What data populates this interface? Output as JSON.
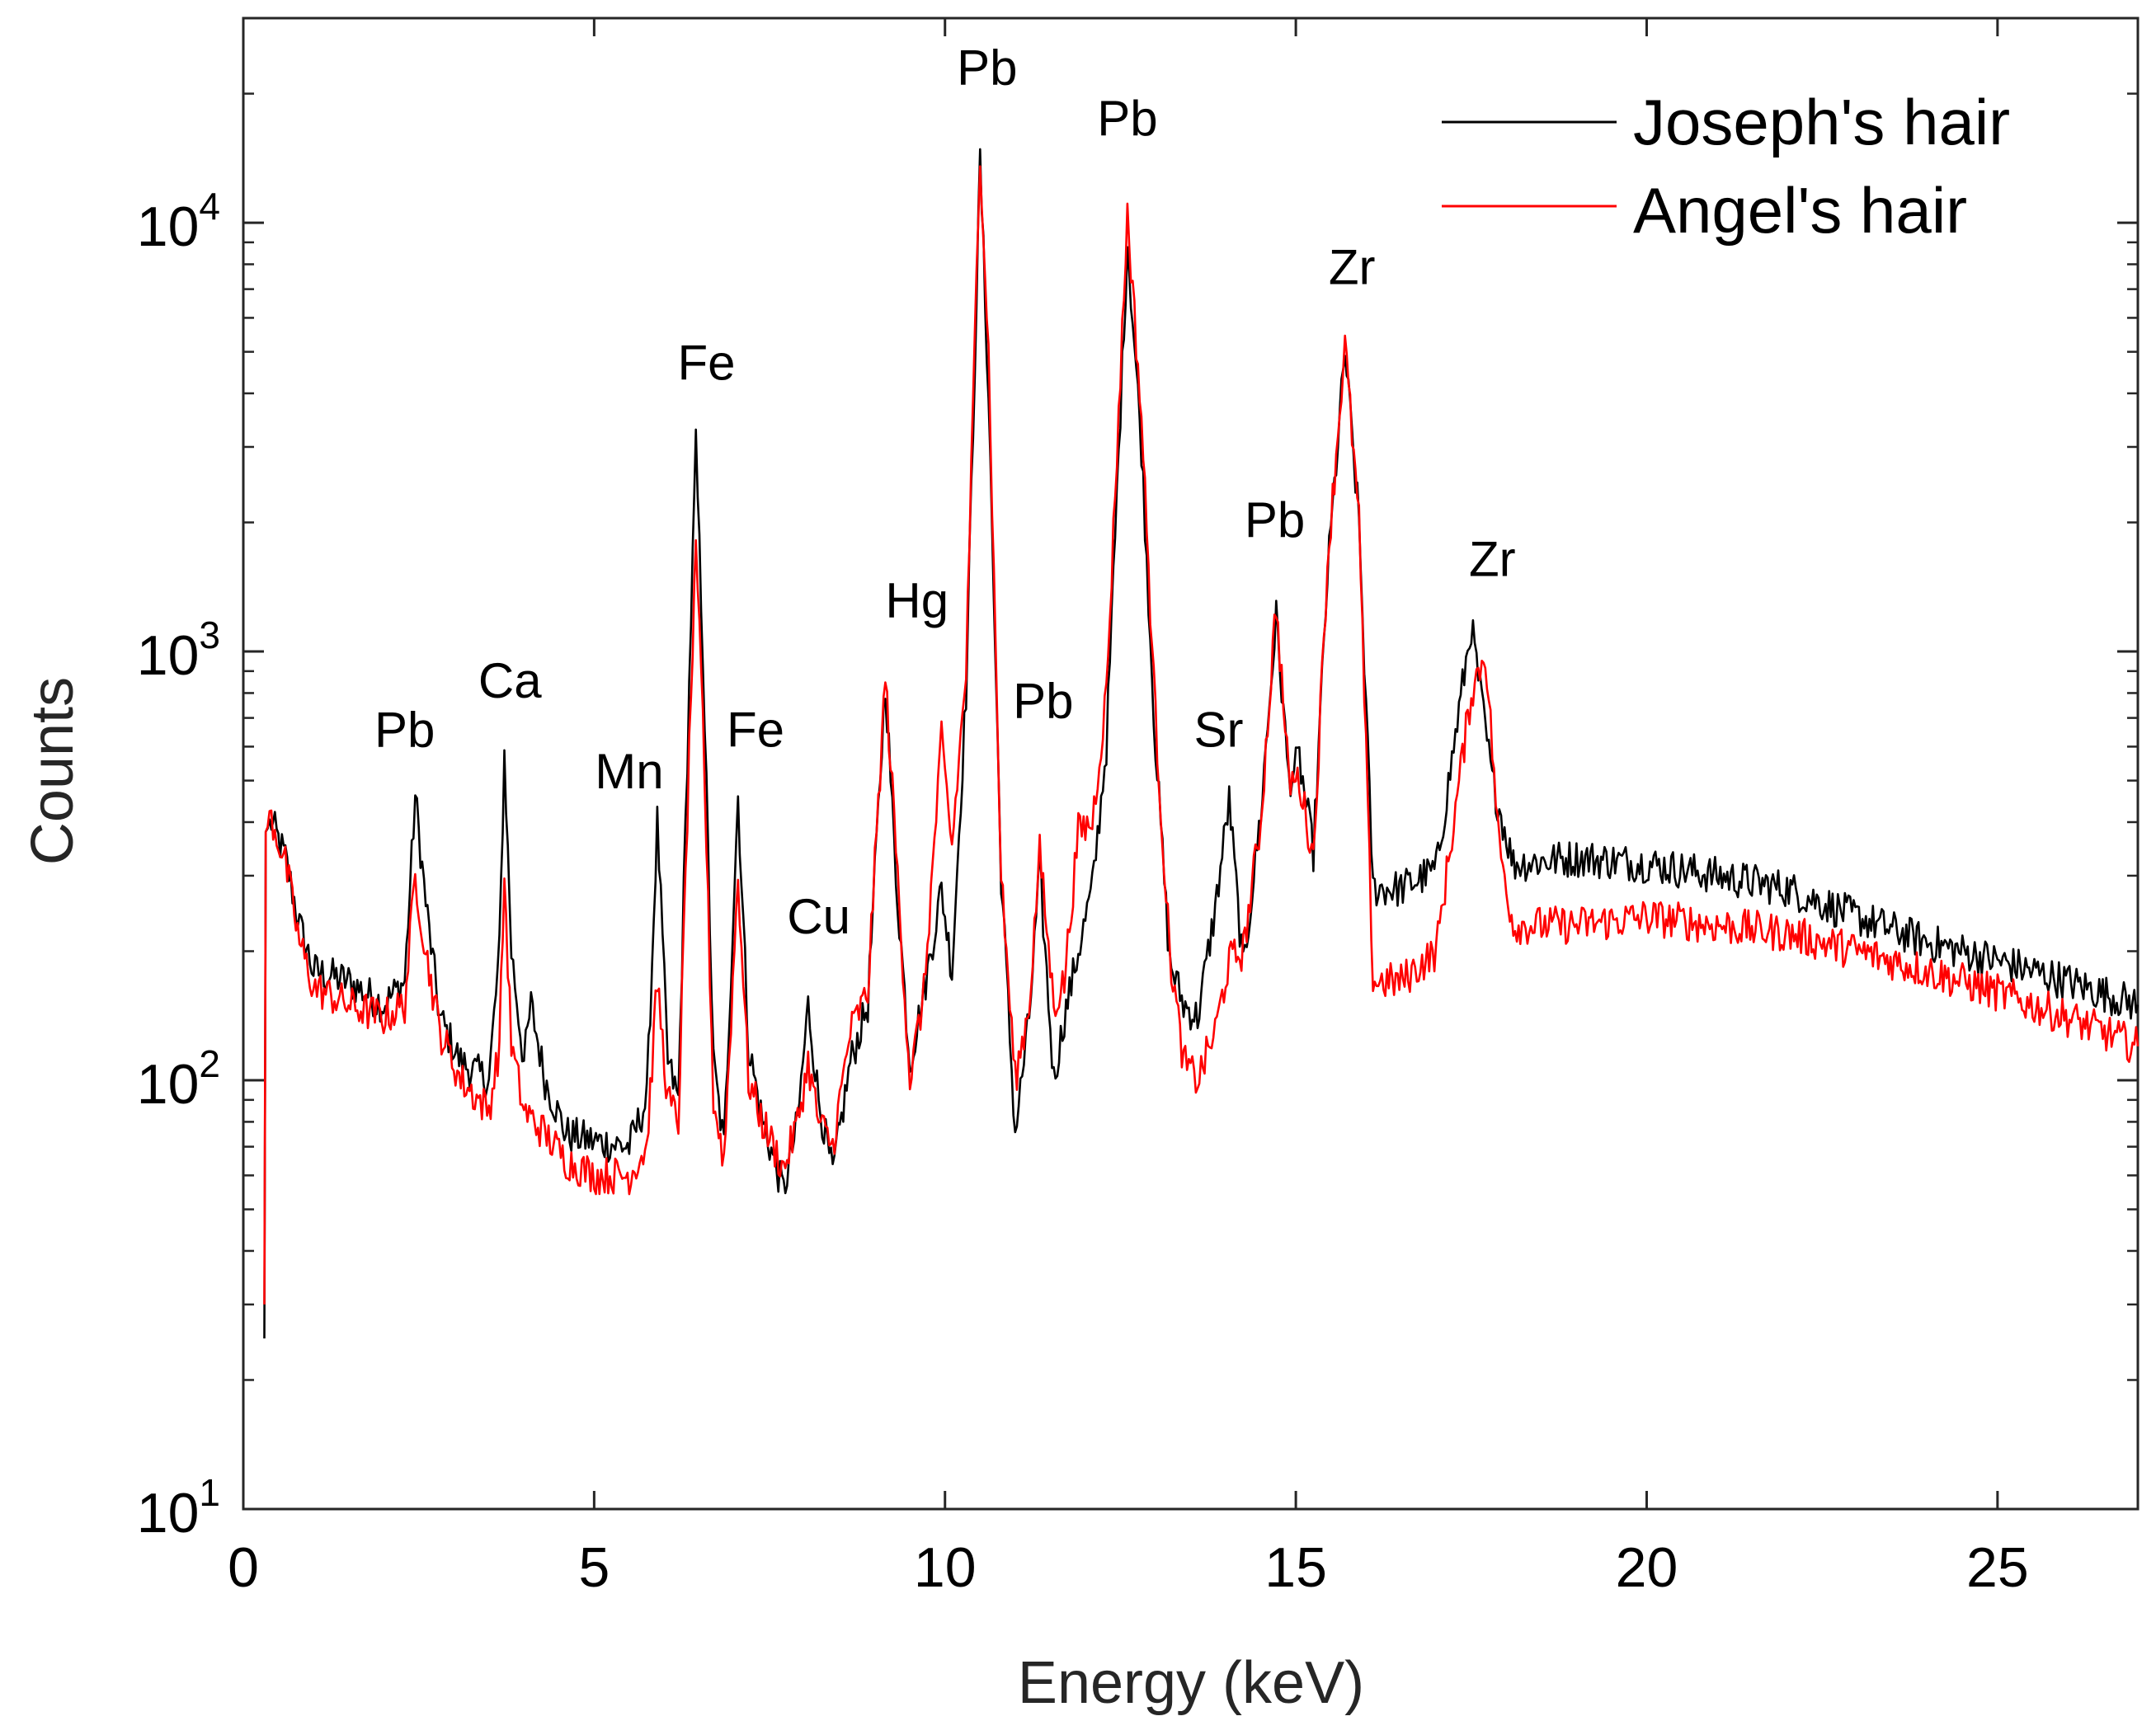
{
  "chart_data": {
    "type": "line",
    "title": "",
    "xlabel": "Energy (keV)",
    "ylabel": "Counts",
    "xlim": [
      0,
      27
    ],
    "ylim": [
      10,
      30000
    ],
    "yscale": "log",
    "x_ticks": [
      {
        "value": 0,
        "label": "0"
      },
      {
        "value": 5,
        "label": "5"
      },
      {
        "value": 10,
        "label": "10"
      },
      {
        "value": 15,
        "label": "15"
      },
      {
        "value": 20,
        "label": "20"
      },
      {
        "value": 25,
        "label": "25"
      }
    ],
    "y_ticks": [
      {
        "value": 10,
        "base": "10",
        "exp": "1"
      },
      {
        "value": 100,
        "base": "10",
        "exp": "2"
      },
      {
        "value": 1000,
        "base": "10",
        "exp": "3"
      },
      {
        "value": 10000,
        "base": "10",
        "exp": "4"
      }
    ],
    "legend_position": "top-right",
    "series": [
      {
        "name": "Joseph's hair",
        "color": "#000000",
        "points": [
          [
            0.3,
            25
          ],
          [
            0.32,
            380
          ],
          [
            0.4,
            400
          ],
          [
            0.6,
            330
          ],
          [
            0.8,
            230
          ],
          [
            1.0,
            180
          ],
          [
            1.5,
            170
          ],
          [
            2.0,
            150
          ],
          [
            2.3,
            170
          ],
          [
            2.45,
            460
          ],
          [
            2.6,
            260
          ],
          [
            2.8,
            140
          ],
          [
            3.1,
            110
          ],
          [
            3.5,
            100
          ],
          [
            3.65,
            200
          ],
          [
            3.72,
            580
          ],
          [
            3.82,
            200
          ],
          [
            4.0,
            110
          ],
          [
            4.1,
            150
          ],
          [
            4.3,
            100
          ],
          [
            4.6,
            75
          ],
          [
            5.0,
            72
          ],
          [
            5.5,
            70
          ],
          [
            5.75,
            90
          ],
          [
            5.9,
            400
          ],
          [
            6.05,
            110
          ],
          [
            6.2,
            90
          ],
          [
            6.38,
            1200
          ],
          [
            6.45,
            3000
          ],
          [
            6.55,
            1000
          ],
          [
            6.7,
            110
          ],
          [
            6.85,
            70
          ],
          [
            7.05,
            460
          ],
          [
            7.2,
            120
          ],
          [
            7.4,
            80
          ],
          [
            7.7,
            55
          ],
          [
            7.9,
            80
          ],
          [
            8.05,
            150
          ],
          [
            8.2,
            90
          ],
          [
            8.4,
            60
          ],
          [
            8.65,
            110
          ],
          [
            8.9,
            150
          ],
          [
            9.15,
            850
          ],
          [
            9.3,
            300
          ],
          [
            9.5,
            110
          ],
          [
            9.7,
            160
          ],
          [
            9.95,
            280
          ],
          [
            10.1,
            180
          ],
          [
            10.3,
            800
          ],
          [
            10.5,
            14000
          ],
          [
            10.62,
            4000
          ],
          [
            10.8,
            300
          ],
          [
            11.0,
            75
          ],
          [
            11.2,
            140
          ],
          [
            11.35,
            310
          ],
          [
            11.55,
            100
          ],
          [
            11.7,
            140
          ],
          [
            11.9,
            200
          ],
          [
            12.1,
            280
          ],
          [
            12.3,
            600
          ],
          [
            12.6,
            9000
          ],
          [
            12.8,
            3000
          ],
          [
            13.0,
            600
          ],
          [
            13.2,
            190
          ],
          [
            13.4,
            150
          ],
          [
            13.6,
            140
          ],
          [
            13.85,
            250
          ],
          [
            14.05,
            450
          ],
          [
            14.25,
            180
          ],
          [
            14.5,
            420
          ],
          [
            14.72,
            1200
          ],
          [
            14.9,
            500
          ],
          [
            15.05,
            560
          ],
          [
            15.25,
            340
          ],
          [
            15.45,
            1500
          ],
          [
            15.7,
            5000
          ],
          [
            15.9,
            2000
          ],
          [
            16.1,
            280
          ],
          [
            16.5,
            280
          ],
          [
            17.0,
            310
          ],
          [
            17.5,
            1150
          ],
          [
            17.8,
            500
          ],
          [
            18.1,
            320
          ],
          [
            19.0,
            330
          ],
          [
            20.0,
            320
          ],
          [
            21.0,
            300
          ],
          [
            22.0,
            280
          ],
          [
            23.0,
            240
          ],
          [
            24.0,
            210
          ],
          [
            25.0,
            190
          ],
          [
            26.0,
            170
          ],
          [
            27.0,
            150
          ]
        ]
      },
      {
        "name": "Angel's hair",
        "color": "#ff0000",
        "points": [
          [
            0.3,
            30
          ],
          [
            0.32,
            380
          ],
          [
            0.4,
            410
          ],
          [
            0.6,
            320
          ],
          [
            0.8,
            210
          ],
          [
            1.0,
            165
          ],
          [
            1.5,
            150
          ],
          [
            2.0,
            140
          ],
          [
            2.3,
            150
          ],
          [
            2.45,
            300
          ],
          [
            2.6,
            200
          ],
          [
            2.8,
            130
          ],
          [
            3.1,
            100
          ],
          [
            3.5,
            85
          ],
          [
            3.65,
            120
          ],
          [
            3.72,
            300
          ],
          [
            3.82,
            120
          ],
          [
            4.0,
            85
          ],
          [
            4.3,
            75
          ],
          [
            4.6,
            65
          ],
          [
            5.0,
            60
          ],
          [
            5.5,
            60
          ],
          [
            5.75,
            70
          ],
          [
            5.9,
            170
          ],
          [
            6.05,
            90
          ],
          [
            6.2,
            80
          ],
          [
            6.38,
            800
          ],
          [
            6.45,
            1650
          ],
          [
            6.55,
            700
          ],
          [
            6.7,
            90
          ],
          [
            6.85,
            65
          ],
          [
            7.05,
            300
          ],
          [
            7.2,
            100
          ],
          [
            7.4,
            80
          ],
          [
            7.7,
            62
          ],
          [
            7.9,
            80
          ],
          [
            8.05,
            110
          ],
          [
            8.2,
            80
          ],
          [
            8.4,
            70
          ],
          [
            8.65,
            130
          ],
          [
            8.9,
            160
          ],
          [
            9.15,
            870
          ],
          [
            9.3,
            350
          ],
          [
            9.5,
            100
          ],
          [
            9.7,
            160
          ],
          [
            9.95,
            620
          ],
          [
            10.1,
            350
          ],
          [
            10.3,
            900
          ],
          [
            10.5,
            15000
          ],
          [
            10.62,
            5000
          ],
          [
            10.8,
            300
          ],
          [
            11.0,
            100
          ],
          [
            11.2,
            150
          ],
          [
            11.35,
            340
          ],
          [
            11.55,
            150
          ],
          [
            11.7,
            170
          ],
          [
            11.9,
            380
          ],
          [
            12.1,
            400
          ],
          [
            12.3,
            800
          ],
          [
            12.6,
            10500
          ],
          [
            12.8,
            3500
          ],
          [
            13.0,
            700
          ],
          [
            13.2,
            200
          ],
          [
            13.4,
            110
          ],
          [
            13.6,
            100
          ],
          [
            13.85,
            130
          ],
          [
            14.05,
            190
          ],
          [
            14.25,
            200
          ],
          [
            14.5,
            400
          ],
          [
            14.72,
            1300
          ],
          [
            14.9,
            500
          ],
          [
            15.05,
            500
          ],
          [
            15.25,
            330
          ],
          [
            15.45,
            1600
          ],
          [
            15.7,
            5200
          ],
          [
            15.9,
            2000
          ],
          [
            16.1,
            170
          ],
          [
            16.5,
            170
          ],
          [
            17.0,
            200
          ],
          [
            17.5,
            800
          ],
          [
            17.7,
            1000
          ],
          [
            17.9,
            350
          ],
          [
            18.1,
            230
          ],
          [
            19.0,
            230
          ],
          [
            20.0,
            240
          ],
          [
            21.0,
            230
          ],
          [
            22.0,
            220
          ],
          [
            23.0,
            200
          ],
          [
            24.0,
            180
          ],
          [
            25.0,
            160
          ],
          [
            26.0,
            140
          ],
          [
            27.0,
            120
          ]
        ]
      }
    ],
    "annotations": [
      {
        "text": "Pb",
        "x": 2.3,
        "y": 600
      },
      {
        "text": "Ca",
        "x": 3.8,
        "y": 780
      },
      {
        "text": "Mn",
        "x": 5.5,
        "y": 480
      },
      {
        "text": "Fe",
        "x": 6.6,
        "y": 4300
      },
      {
        "text": "Fe",
        "x": 7.3,
        "y": 600
      },
      {
        "text": "Cu",
        "x": 8.2,
        "y": 220
      },
      {
        "text": "Hg",
        "x": 9.6,
        "y": 1200
      },
      {
        "text": "Pb",
        "x": 10.6,
        "y": 21000
      },
      {
        "text": "Pb",
        "x": 11.4,
        "y": 700
      },
      {
        "text": "Pb",
        "x": 12.6,
        "y": 16000
      },
      {
        "text": "Sr",
        "x": 13.9,
        "y": 600
      },
      {
        "text": "Pb",
        "x": 14.7,
        "y": 1850
      },
      {
        "text": "Zr",
        "x": 15.8,
        "y": 7200
      },
      {
        "text": "Zr",
        "x": 17.8,
        "y": 1500
      }
    ]
  }
}
